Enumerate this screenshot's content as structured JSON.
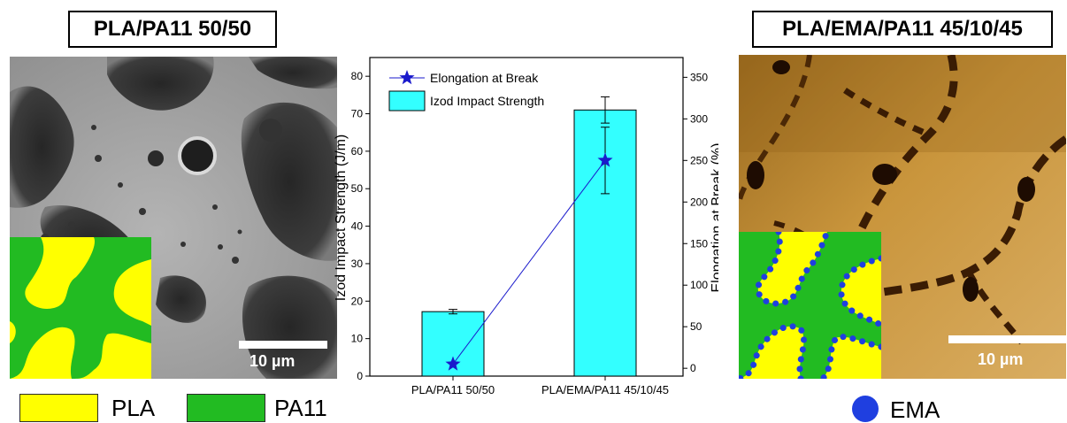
{
  "left_panel": {
    "title": "PLA/PA11 50/50",
    "scale_label": "10 µm"
  },
  "right_panel": {
    "title": "PLA/EMA/PA11 45/10/45",
    "scale_label": "10 µm"
  },
  "legend": {
    "pla": {
      "label": "PLA",
      "color": "#ffff00"
    },
    "pa11": {
      "label": "PA11",
      "color": "#22bb22"
    },
    "ema": {
      "label": "EMA",
      "color": "#1f3fe0"
    }
  },
  "chart_data": {
    "type": "bar",
    "categories": [
      "PLA/PA11 50/50",
      "PLA/EMA/PA11 45/10/45"
    ],
    "series": [
      {
        "name": "Izod Impact Strength",
        "type": "bar",
        "axis": "left",
        "values": [
          17.2,
          71
        ],
        "errors": [
          0.6,
          3.5
        ],
        "color": "#33ffff"
      },
      {
        "name": "Elongation at Break",
        "type": "line",
        "marker": "star",
        "axis": "right",
        "values": [
          5,
          250
        ],
        "errors": [
          0,
          40
        ],
        "color": "#1a1acc"
      }
    ],
    "ylabel": "Izod Impact Strength (J/m)",
    "y2label": "Elongation at Break (%)",
    "ylim": [
      0,
      85
    ],
    "y2lim": [
      -9.4,
      373.8
    ],
    "yticks": [
      0,
      10,
      20,
      30,
      40,
      50,
      60,
      70,
      80
    ],
    "y2ticks": [
      0,
      50,
      100,
      150,
      200,
      250,
      300,
      350
    ],
    "legend_position": "top-left"
  }
}
